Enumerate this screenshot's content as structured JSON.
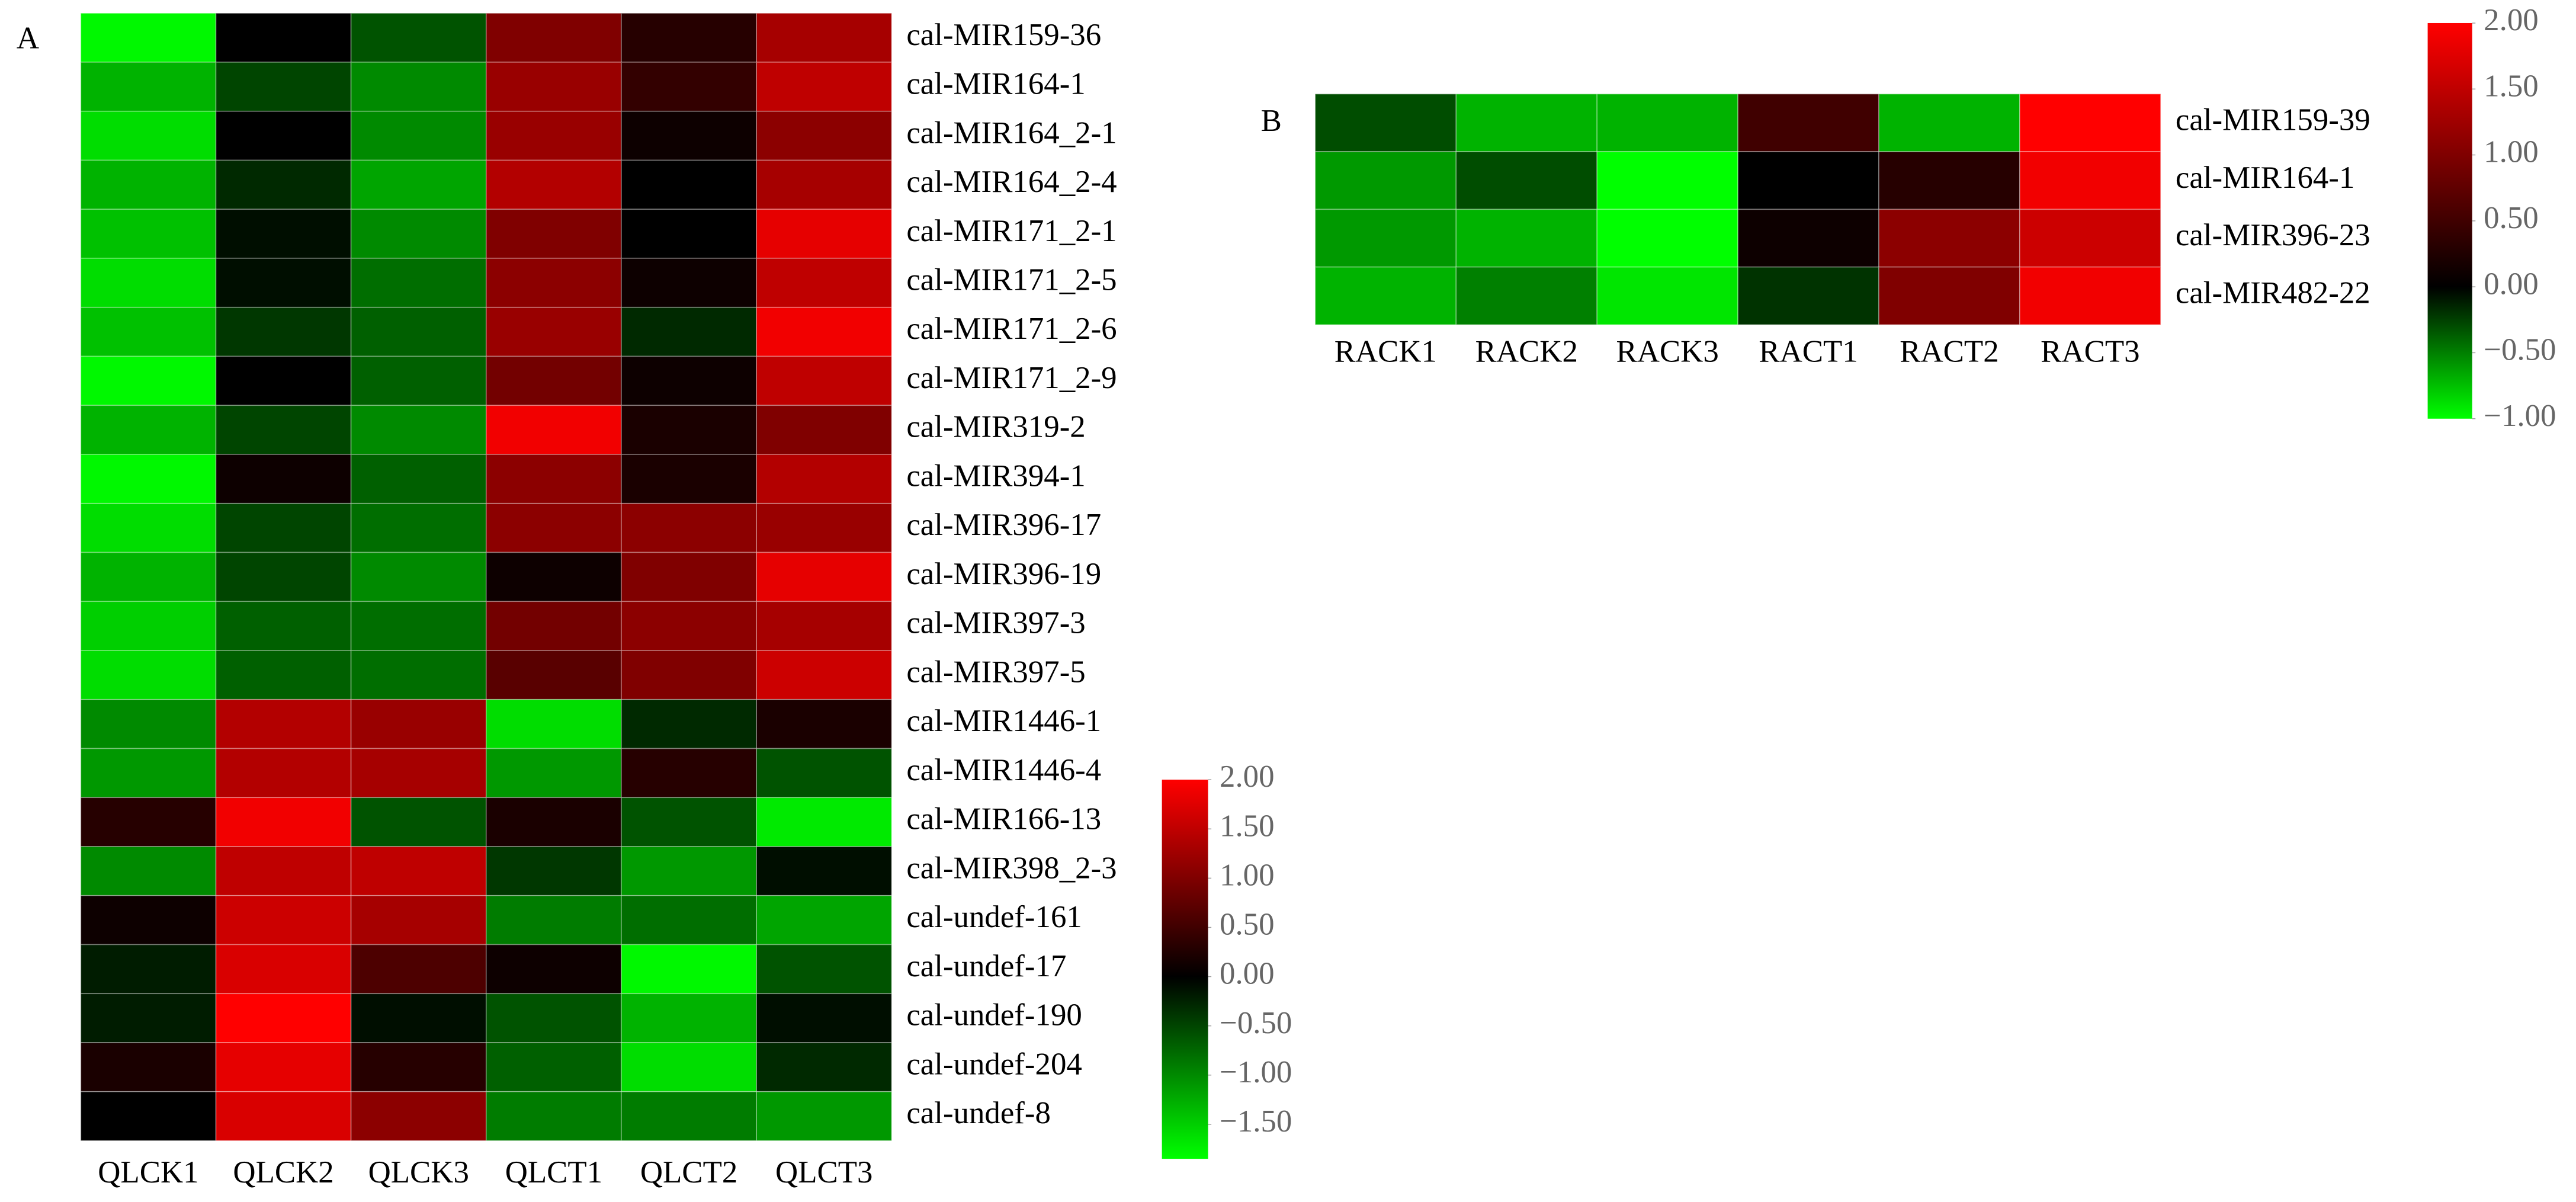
{
  "chart_data": [
    {
      "type": "heatmap",
      "panel_label": "A",
      "columns": [
        "QLCK1",
        "QLCK2",
        "QLCK3",
        "QLCT1",
        "QLCT2",
        "QLCT3"
      ],
      "rows": [
        "cal-MIR159-36",
        "cal-MIR164-1",
        "cal-MIR164_2-1",
        "cal-MIR164_2-4",
        "cal-MIR171_2-1",
        "cal-MIR171_2-5",
        "cal-MIR171_2-6",
        "cal-MIR171_2-9",
        "cal-MIR319-2",
        "cal-MIR394-1",
        "cal-MIR396-17",
        "cal-MIR396-19",
        "cal-MIR397-3",
        "cal-MIR397-5",
        "cal-MIR1446-1",
        "cal-MIR1446-4",
        "cal-MIR166-13",
        "cal-MIR398_2-3",
        "cal-undef-161",
        "cal-undef-17",
        "cal-undef-190",
        "cal-undef-204",
        "cal-undef-8"
      ],
      "values": [
        [
          -1.8,
          0,
          -0.6,
          1.0,
          0.3,
          1.3
        ],
        [
          -1.3,
          -0.5,
          -1.0,
          1.2,
          0.4,
          1.5
        ],
        [
          -1.6,
          0,
          -1.0,
          1.2,
          0.1,
          1.1
        ],
        [
          -1.3,
          -0.3,
          -1.2,
          1.4,
          0,
          1.3
        ],
        [
          -1.4,
          -0.1,
          -1.0,
          1.0,
          0,
          1.8
        ],
        [
          -1.6,
          -0.1,
          -0.8,
          1.1,
          0.1,
          1.5
        ],
        [
          -1.4,
          -0.4,
          -0.7,
          1.2,
          -0.3,
          1.9
        ],
        [
          -1.8,
          0,
          -0.7,
          0.9,
          0.1,
          1.5
        ],
        [
          -1.3,
          -0.5,
          -1.0,
          1.9,
          0.2,
          1.0
        ],
        [
          -1.8,
          0.1,
          -0.7,
          1.1,
          0.2,
          1.4
        ],
        [
          -1.6,
          -0.5,
          -0.8,
          1.1,
          1.1,
          1.2
        ],
        [
          -1.3,
          -0.5,
          -1.0,
          0.1,
          1.0,
          1.8
        ],
        [
          -1.5,
          -0.7,
          -0.8,
          0.9,
          1.1,
          1.3
        ],
        [
          -1.6,
          -0.7,
          -0.8,
          0.7,
          1.0,
          1.6
        ],
        [
          -1.0,
          1.4,
          1.2,
          -1.6,
          -0.3,
          0.2
        ],
        [
          -1.1,
          1.4,
          1.3,
          -1.1,
          0.3,
          -0.6
        ],
        [
          0.3,
          1.9,
          -0.6,
          0.2,
          -0.6,
          -1.7
        ],
        [
          -1.0,
          1.5,
          1.5,
          -0.4,
          -1.1,
          -0.1
        ],
        [
          0.1,
          1.6,
          1.3,
          -0.9,
          -0.8,
          -1.2
        ],
        [
          -0.2,
          1.7,
          0.6,
          0.1,
          -1.8,
          -0.6
        ],
        [
          -0.2,
          2.0,
          -0.1,
          -0.6,
          -1.3,
          -0.1
        ],
        [
          0.2,
          1.8,
          0.3,
          -0.7,
          -1.6,
          -0.3
        ],
        [
          0,
          1.7,
          1.1,
          -0.9,
          -0.9,
          -1.1
        ]
      ],
      "zlim": [
        -1.85,
        2.0
      ],
      "zticks": [
        {
          "value": 2,
          "label": "2.00"
        },
        {
          "value": 1.5,
          "label": "1.50"
        },
        {
          "value": 1,
          "label": "1.00"
        },
        {
          "value": 0.5,
          "label": "0.50"
        },
        {
          "value": 0,
          "label": "0.00"
        },
        {
          "value": -0.5,
          "label": "−0.50"
        },
        {
          "value": -1,
          "label": "−1.00"
        },
        {
          "value": -1.5,
          "label": "−1.50"
        }
      ],
      "low_color": "#00ff00",
      "mid_color": "#000000",
      "high_color": "#ff0000"
    },
    {
      "type": "heatmap",
      "panel_label": "B",
      "columns": [
        "RACK1",
        "RACK2",
        "RACK3",
        "RACT1",
        "RACT2",
        "RACT3"
      ],
      "rows": [
        "cal-MIR159-39",
        "cal-MIR164-1",
        "cal-MIR396-23",
        "cal-MIR482-22"
      ],
      "values": [
        [
          -0.3,
          -0.7,
          -0.7,
          0.5,
          -0.7,
          2.0
        ],
        [
          -0.6,
          -0.3,
          -1.0,
          0,
          0.3,
          1.9
        ],
        [
          -0.6,
          -0.7,
          -1.0,
          0.1,
          1.1,
          1.6
        ],
        [
          -0.7,
          -0.5,
          -0.9,
          -0.2,
          1.0,
          1.9
        ]
      ],
      "zlim": [
        -1.0,
        2.0
      ],
      "zticks": [
        {
          "value": 2,
          "label": "2.00"
        },
        {
          "value": 1.5,
          "label": "1.50"
        },
        {
          "value": 1,
          "label": "1.00"
        },
        {
          "value": 0.5,
          "label": "0.50"
        },
        {
          "value": 0,
          "label": "0.00"
        },
        {
          "value": -0.5,
          "label": "−0.50"
        },
        {
          "value": -1,
          "label": "−1.00"
        }
      ],
      "low_color": "#00ff00",
      "mid_color": "#000000",
      "high_color": "#ff0000"
    }
  ]
}
